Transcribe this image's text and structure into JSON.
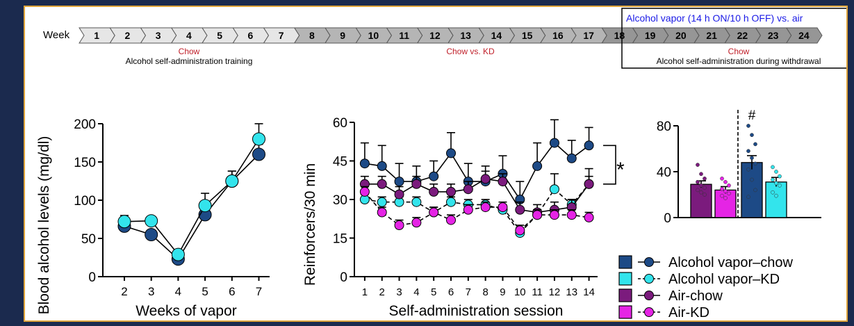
{
  "timeline": {
    "week_label": "Week",
    "weeks": [
      "1",
      "2",
      "3",
      "4",
      "5",
      "6",
      "7",
      "8",
      "9",
      "10",
      "11",
      "12",
      "13",
      "14",
      "15",
      "16",
      "17",
      "18",
      "19",
      "20",
      "21",
      "22",
      "23",
      "24"
    ],
    "phase1_diet": "Chow",
    "phase1_desc": "Alcohol self-administration training",
    "phase2_diet": "Chow vs. KD",
    "phase3_header": "Alcohol vapor (14 h ON/10 h OFF) vs. air",
    "phase3_diet": "Chow",
    "phase3_desc": "Alcohol self-administration during withdrawal"
  },
  "colors": {
    "vapor_chow": "#1d4a86",
    "vapor_kd": "#33e4ec",
    "air_chow": "#7b1b7d",
    "air_kd": "#e524e5",
    "red_text": "#c0202a",
    "blue_text": "#1a1ae6"
  },
  "legend": {
    "items": [
      {
        "label": "Alcohol vapor–chow",
        "color": "#1d4a86"
      },
      {
        "label": "Alcohol vapor–KD",
        "color": "#33e4ec"
      },
      {
        "label": "Air-chow",
        "color": "#7b1b7d"
      },
      {
        "label": "Air-KD",
        "color": "#e524e5"
      }
    ]
  },
  "chart_data": [
    {
      "type": "line",
      "xlabel": "Weeks of vapor",
      "ylabel": "Blood alcohol levels (mg/dl)",
      "x": [
        2,
        3,
        4,
        5,
        6,
        7
      ],
      "xlim": [
        1.2,
        7.4
      ],
      "ylim": [
        0,
        200
      ],
      "yticks": [
        0,
        50,
        100,
        150,
        200
      ],
      "series": [
        {
          "name": "Alcohol vapor–chow",
          "values": [
            66,
            55,
            23,
            81,
            125,
            160
          ],
          "err": [
            6,
            4,
            4,
            11,
            13,
            13
          ]
        },
        {
          "name": "Alcohol vapor–KD",
          "values": [
            72,
            73,
            29,
            93,
            125,
            180
          ],
          "err": [
            8,
            4,
            4,
            16,
            13,
            20
          ]
        }
      ]
    },
    {
      "type": "line",
      "xlabel": "Self-administration session",
      "ylabel": "Reinforcers/30 min",
      "x": [
        1,
        2,
        3,
        4,
        5,
        6,
        7,
        8,
        9,
        10,
        11,
        12,
        13,
        14
      ],
      "xlim": [
        0.4,
        14.5
      ],
      "ylim": [
        0,
        60
      ],
      "yticks": [
        0,
        15,
        30,
        45,
        60
      ],
      "annotation": "*",
      "series": [
        {
          "name": "Alcohol vapor–chow",
          "values": [
            44,
            43,
            37,
            37,
            39,
            48,
            37,
            37,
            40,
            30,
            43,
            52,
            46,
            51
          ],
          "err": [
            8,
            8,
            7,
            6,
            6,
            8,
            7,
            6,
            7,
            7,
            9,
            9,
            7,
            7
          ]
        },
        {
          "name": "Alcohol vapor–KD",
          "values": [
            30,
            29,
            29,
            29,
            25,
            29,
            28,
            28,
            26,
            17,
            24,
            34,
            28,
            36
          ],
          "err": [
            2,
            2,
            2,
            2,
            2,
            2,
            2,
            2,
            2,
            2,
            2,
            6,
            2,
            6
          ]
        },
        {
          "name": "Air-chow",
          "values": [
            36,
            36,
            32,
            36,
            33,
            33,
            34,
            38,
            37,
            26,
            25,
            26,
            27,
            36
          ],
          "err": [
            3,
            3,
            3,
            3,
            3,
            3,
            3,
            3,
            3,
            3,
            3,
            3,
            3,
            3
          ]
        },
        {
          "name": "Air-KD",
          "values": [
            33,
            25,
            20,
            21,
            25,
            22,
            26,
            27,
            27,
            18,
            24,
            24,
            24,
            23
          ],
          "err": [
            2,
            2,
            2,
            2,
            2,
            2,
            2,
            2,
            2,
            2,
            2,
            2,
            2,
            2
          ]
        }
      ]
    },
    {
      "type": "bar",
      "ylim": [
        0,
        80
      ],
      "yticks": [
        0,
        40,
        80
      ],
      "annotation": "#",
      "series": [
        {
          "name": "Air-chow",
          "value": 29,
          "err": 3,
          "points": [
            46,
            38,
            34,
            31,
            28,
            26,
            24,
            22,
            20
          ]
        },
        {
          "name": "Air-KD",
          "value": 24,
          "err": 3,
          "points": [
            34,
            31,
            28,
            25,
            23,
            21,
            19,
            17
          ]
        },
        {
          "name": "Alcohol vapor–chow",
          "value": 48,
          "err": 6,
          "points": [
            80,
            72,
            64,
            58,
            52,
            47,
            42,
            33,
            24,
            18
          ]
        },
        {
          "name": "Alcohol vapor–KD",
          "value": 31,
          "err": 4,
          "points": [
            44,
            40,
            36,
            33,
            30,
            28,
            22,
            19
          ]
        }
      ]
    }
  ]
}
